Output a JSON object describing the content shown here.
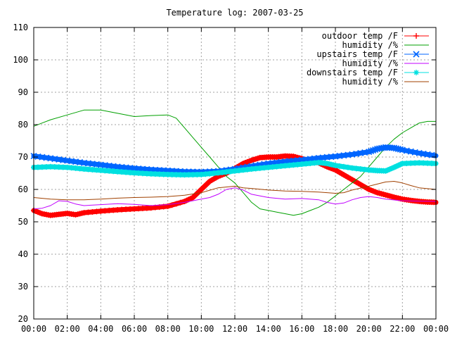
{
  "chart_data": {
    "type": "line",
    "title": "Temperature log: 2007-03-25",
    "xlabel": "",
    "ylabel": "",
    "xlim": [
      0,
      24
    ],
    "ylim": [
      20,
      110
    ],
    "grid": true,
    "legend_position": "top-right",
    "x_tick_labels": [
      "00:00",
      "02:00",
      "04:00",
      "06:00",
      "08:00",
      "10:00",
      "12:00",
      "14:00",
      "16:00",
      "18:00",
      "20:00",
      "22:00",
      "00:00"
    ],
    "y_tick_labels": [
      "20",
      "30",
      "40",
      "50",
      "60",
      "70",
      "80",
      "90",
      "100",
      "110"
    ],
    "series": [
      {
        "name": "outdoor temp /F",
        "color": "#ff0000",
        "marker": "plus",
        "points": [
          [
            0,
            53.5
          ],
          [
            0.5,
            52.5
          ],
          [
            1,
            52
          ],
          [
            1.5,
            52.3
          ],
          [
            2,
            52.6
          ],
          [
            2.5,
            52.2
          ],
          [
            3,
            52.8
          ],
          [
            4,
            53.3
          ],
          [
            5,
            53.7
          ],
          [
            6,
            54
          ],
          [
            7,
            54.3
          ],
          [
            8,
            54.8
          ],
          [
            9,
            56.3
          ],
          [
            9.5,
            57.5
          ],
          [
            10,
            60
          ],
          [
            10.5,
            62.5
          ],
          [
            11,
            64
          ],
          [
            11.5,
            65
          ],
          [
            12,
            66.5
          ],
          [
            12.5,
            68
          ],
          [
            13,
            69
          ],
          [
            13.5,
            69.8
          ],
          [
            14,
            70
          ],
          [
            14.5,
            70
          ],
          [
            15,
            70.3
          ],
          [
            15.5,
            70.2
          ],
          [
            16,
            69.5
          ],
          [
            16.5,
            68.8
          ],
          [
            17,
            68.2
          ],
          [
            17.5,
            67
          ],
          [
            18,
            66
          ],
          [
            18.5,
            64.5
          ],
          [
            19,
            63
          ],
          [
            19.5,
            61.5
          ],
          [
            20,
            60
          ],
          [
            20.5,
            59
          ],
          [
            21,
            58.3
          ],
          [
            21.5,
            57.6
          ],
          [
            22,
            57
          ],
          [
            22.5,
            56.6
          ],
          [
            23,
            56.3
          ],
          [
            23.5,
            56.1
          ],
          [
            24,
            56
          ]
        ]
      },
      {
        "name": "humidity /%",
        "color": "#00a000",
        "marker": "none",
        "points": [
          [
            0,
            79.5
          ],
          [
            0.5,
            80.5
          ],
          [
            1,
            81.5
          ],
          [
            2,
            83
          ],
          [
            3,
            84.5
          ],
          [
            4,
            84.5
          ],
          [
            5,
            83.5
          ],
          [
            6,
            82.5
          ],
          [
            7,
            82.8
          ],
          [
            8,
            83
          ],
          [
            8.5,
            82
          ],
          [
            9,
            79
          ],
          [
            9.5,
            76
          ],
          [
            10,
            73
          ],
          [
            10.5,
            70
          ],
          [
            11,
            67
          ],
          [
            11.5,
            64
          ],
          [
            12,
            62
          ],
          [
            12.5,
            59
          ],
          [
            13,
            56
          ],
          [
            13.5,
            54
          ],
          [
            14,
            53.5
          ],
          [
            14.5,
            53
          ],
          [
            15,
            52.5
          ],
          [
            15.5,
            52
          ],
          [
            16,
            52.5
          ],
          [
            16.5,
            53.5
          ],
          [
            17,
            54.5
          ],
          [
            17.5,
            56
          ],
          [
            18,
            58
          ],
          [
            18.5,
            60
          ],
          [
            19,
            62
          ],
          [
            19.5,
            64
          ],
          [
            20,
            67
          ],
          [
            20.5,
            70
          ],
          [
            21,
            73
          ],
          [
            21.5,
            75.5
          ],
          [
            22,
            77.5
          ],
          [
            22.5,
            79
          ],
          [
            23,
            80.5
          ],
          [
            23.5,
            81
          ],
          [
            24,
            81
          ]
        ]
      },
      {
        "name": "upstairs temp /F",
        "color": "#0066ff",
        "marker": "cross",
        "points": [
          [
            0,
            70.3
          ],
          [
            1,
            69.6
          ],
          [
            2,
            68.9
          ],
          [
            3,
            68.2
          ],
          [
            4,
            67.6
          ],
          [
            5,
            67
          ],
          [
            6,
            66.5
          ],
          [
            7,
            66.1
          ],
          [
            8,
            65.8
          ],
          [
            9,
            65.5
          ],
          [
            10,
            65.4
          ],
          [
            11,
            65.6
          ],
          [
            12,
            66.3
          ],
          [
            13,
            67.2
          ],
          [
            14,
            68
          ],
          [
            15,
            68.6
          ],
          [
            16,
            69.1
          ],
          [
            17,
            69.7
          ],
          [
            18,
            70.2
          ],
          [
            19,
            70.8
          ],
          [
            20,
            71.6
          ],
          [
            20.5,
            72.5
          ],
          [
            21,
            73
          ],
          [
            21.5,
            72.8
          ],
          [
            22,
            72.2
          ],
          [
            23,
            71.2
          ],
          [
            24,
            70.4
          ]
        ]
      },
      {
        "name": "humidity /%",
        "color": "#c000ff",
        "marker": "none",
        "points": [
          [
            0,
            54
          ],
          [
            0.5,
            54.2
          ],
          [
            1,
            55
          ],
          [
            1.5,
            56.5
          ],
          [
            2,
            56.3
          ],
          [
            2.5,
            55.5
          ],
          [
            3,
            55
          ],
          [
            4,
            55.3
          ],
          [
            5,
            55.6
          ],
          [
            6,
            55.4
          ],
          [
            7,
            55
          ],
          [
            8,
            55.3
          ],
          [
            9,
            56
          ],
          [
            10,
            57
          ],
          [
            10.5,
            57.5
          ],
          [
            11,
            58.5
          ],
          [
            11.5,
            60
          ],
          [
            12,
            60.5
          ],
          [
            12.5,
            59.8
          ],
          [
            13,
            58.5
          ],
          [
            14,
            57.5
          ],
          [
            15,
            57
          ],
          [
            16,
            57.2
          ],
          [
            17,
            56.8
          ],
          [
            17.5,
            56
          ],
          [
            18,
            55.5
          ],
          [
            18.5,
            55.8
          ],
          [
            19,
            56.8
          ],
          [
            19.5,
            57.5
          ],
          [
            20,
            57.8
          ],
          [
            20.5,
            57.5
          ],
          [
            21,
            57
          ],
          [
            22,
            56.5
          ],
          [
            23,
            56.4
          ],
          [
            24,
            56.3
          ]
        ]
      },
      {
        "name": "downstairs temp /F",
        "color": "#00e0e0",
        "marker": "star",
        "points": [
          [
            0,
            66.8
          ],
          [
            1,
            67
          ],
          [
            2,
            66.8
          ],
          [
            3,
            66.3
          ],
          [
            4,
            65.9
          ],
          [
            5,
            65.5
          ],
          [
            6,
            65.1
          ],
          [
            7,
            64.8
          ],
          [
            8,
            64.6
          ],
          [
            9,
            64.5
          ],
          [
            10,
            64.6
          ],
          [
            11,
            65.1
          ],
          [
            12,
            65.7
          ],
          [
            13,
            66.3
          ],
          [
            14,
            66.8
          ],
          [
            15,
            67.3
          ],
          [
            16,
            67.8
          ],
          [
            17,
            68.3
          ],
          [
            17.5,
            68
          ],
          [
            18,
            67.4
          ],
          [
            19,
            66.6
          ],
          [
            20,
            66
          ],
          [
            20.5,
            65.8
          ],
          [
            21,
            65.7
          ],
          [
            21.5,
            66.8
          ],
          [
            22,
            68
          ],
          [
            23,
            68.2
          ],
          [
            24,
            68
          ]
        ]
      },
      {
        "name": "humidity /%",
        "color": "#a04000",
        "marker": "none",
        "points": [
          [
            0,
            57.5
          ],
          [
            1,
            57
          ],
          [
            2,
            56.8
          ],
          [
            3,
            56.8
          ],
          [
            4,
            57
          ],
          [
            5,
            57.3
          ],
          [
            6,
            57.5
          ],
          [
            7,
            57.6
          ],
          [
            8,
            57.8
          ],
          [
            9,
            58.2
          ],
          [
            10,
            59
          ],
          [
            11,
            60.5
          ],
          [
            12,
            61
          ],
          [
            12.5,
            60.5
          ],
          [
            13,
            60.3
          ],
          [
            14,
            59.8
          ],
          [
            15,
            59.5
          ],
          [
            16,
            59.4
          ],
          [
            17,
            59.2
          ],
          [
            18,
            58.8
          ],
          [
            18.5,
            59
          ],
          [
            19,
            59.8
          ],
          [
            20,
            61
          ],
          [
            21,
            62.3
          ],
          [
            21.5,
            62.5
          ],
          [
            22,
            62
          ],
          [
            22.5,
            61.2
          ],
          [
            23,
            60.5
          ],
          [
            24,
            60
          ]
        ]
      }
    ]
  }
}
